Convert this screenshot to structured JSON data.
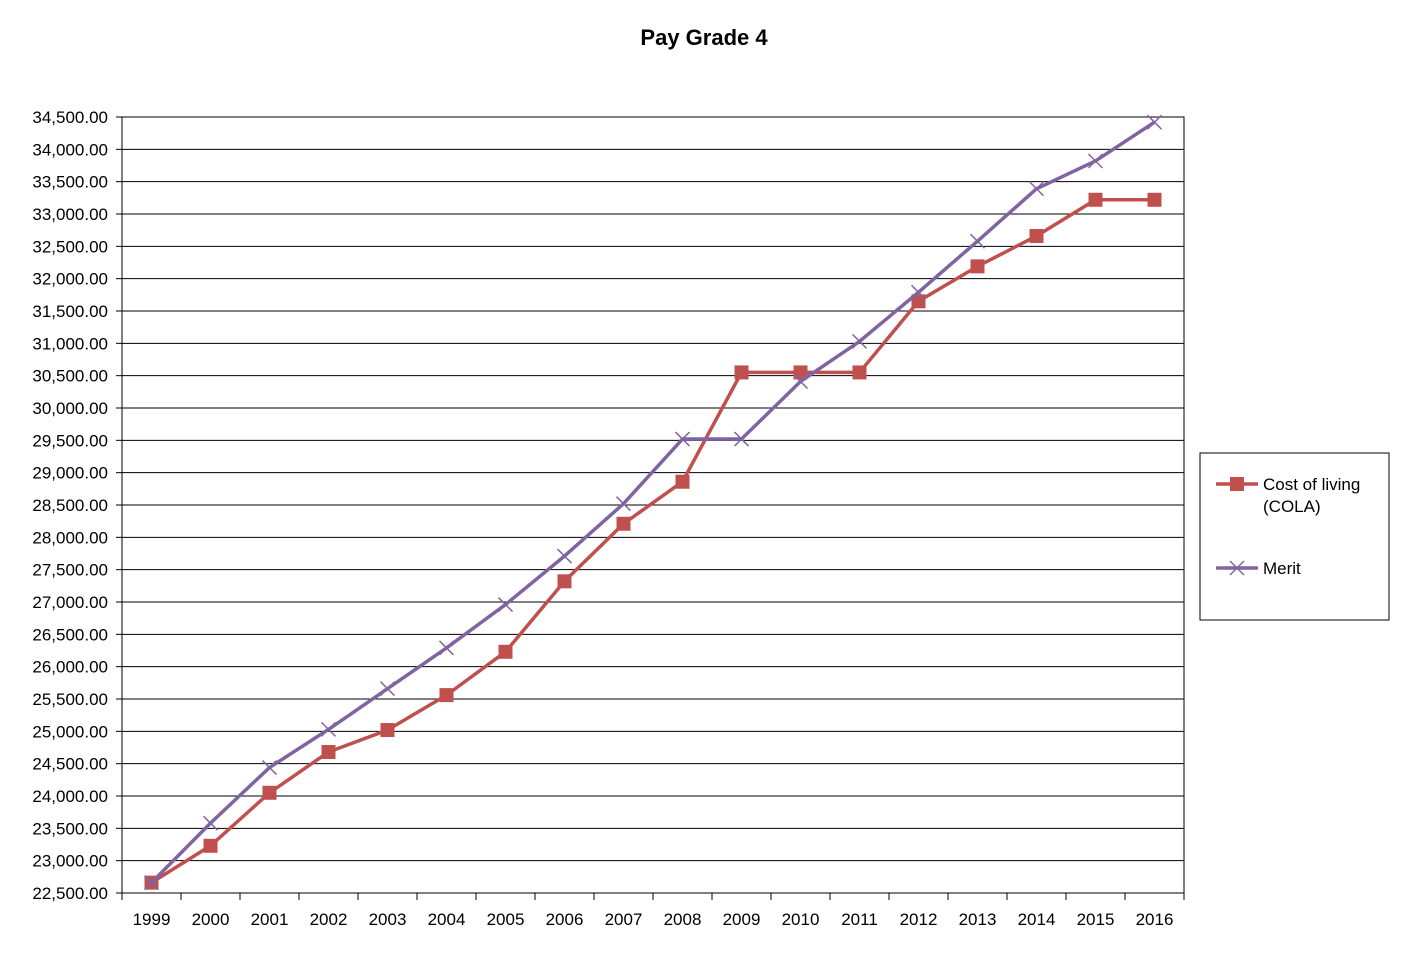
{
  "chart_data": {
    "type": "line",
    "title": "Pay Grade 4",
    "categories": [
      "1999",
      "2000",
      "2001",
      "2002",
      "2003",
      "2004",
      "2005",
      "2006",
      "2007",
      "2008",
      "2009",
      "2010",
      "2011",
      "2012",
      "2013",
      "2014",
      "2015",
      "2016"
    ],
    "y_ticks": [
      "22,500.00",
      "23,000.00",
      "23,500.00",
      "24,000.00",
      "24,500.00",
      "25,000.00",
      "25,500.00",
      "26,000.00",
      "26,500.00",
      "27,000.00",
      "27,500.00",
      "28,000.00",
      "28,500.00",
      "29,000.00",
      "29,500.00",
      "30,000.00",
      "30,500.00",
      "31,000.00",
      "31,500.00",
      "32,000.00",
      "32,500.00",
      "33,000.00",
      "33,500.00",
      "34,000.00",
      "34,500.00"
    ],
    "ylim": [
      22500,
      34500
    ],
    "grid": true,
    "legend_position": "right",
    "series": [
      {
        "name": "Cost of living (COLA)",
        "legend_lines": [
          "Cost of living",
          "(COLA)"
        ],
        "color": "#C0504D",
        "marker": "square",
        "values": [
          22660,
          23230,
          24050,
          24680,
          25020,
          25560,
          26230,
          27320,
          28210,
          28860,
          30550,
          30550,
          30550,
          31650,
          32190,
          32660,
          33220,
          33220
        ]
      },
      {
        "name": "Merit",
        "legend_lines": [
          "Merit"
        ],
        "color": "#8064A2",
        "marker": "x",
        "values": [
          22660,
          23580,
          24440,
          25030,
          25660,
          26290,
          26960,
          27710,
          28520,
          29520,
          29520,
          30410,
          31030,
          31790,
          32580,
          33390,
          33820,
          34420
        ]
      }
    ]
  }
}
